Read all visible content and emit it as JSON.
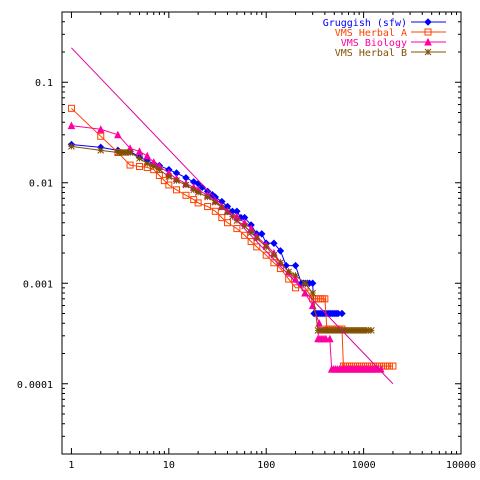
{
  "chart_data": {
    "type": "line",
    "title": "",
    "xlabel": "",
    "ylabel": "",
    "x_scale": "log",
    "y_scale": "log",
    "xlim": [
      0.8,
      10000
    ],
    "ylim": [
      2e-05,
      0.5
    ],
    "x_ticks": [
      {
        "value": 1,
        "label": "1"
      },
      {
        "value": 10,
        "label": "10"
      },
      {
        "value": 100,
        "label": "100"
      },
      {
        "value": 1000,
        "label": "1000"
      },
      {
        "value": 10000,
        "label": "10000"
      }
    ],
    "y_ticks": [
      {
        "value": 0.1,
        "label": "0.1"
      },
      {
        "value": 0.01,
        "label": "0.01"
      },
      {
        "value": 0.001,
        "label": "0.001"
      },
      {
        "value": 0.0001,
        "label": "0.0001"
      }
    ],
    "grid": false,
    "legend_position": "top-right",
    "series": [
      {
        "name": "Gruggish (sfw)",
        "color": "#0000ff",
        "marker": "diamond",
        "points": [
          [
            1,
            0.024
          ],
          [
            2,
            0.0225
          ],
          [
            3,
            0.021
          ],
          [
            4,
            0.0205
          ],
          [
            5,
            0.018
          ],
          [
            6,
            0.0165
          ],
          [
            7,
            0.0155
          ],
          [
            8,
            0.0148
          ],
          [
            10,
            0.0135
          ],
          [
            12,
            0.0125
          ],
          [
            15,
            0.0112
          ],
          [
            18,
            0.0102
          ],
          [
            20,
            0.0098
          ],
          [
            22,
            0.009
          ],
          [
            25,
            0.0082
          ],
          [
            28,
            0.0076
          ],
          [
            30,
            0.0072
          ],
          [
            35,
            0.0065
          ],
          [
            40,
            0.0058
          ],
          [
            45,
            0.0052
          ],
          [
            50,
            0.0052
          ],
          [
            55,
            0.0045
          ],
          [
            60,
            0.0045
          ],
          [
            70,
            0.0038
          ],
          [
            80,
            0.0031
          ],
          [
            90,
            0.0031
          ],
          [
            100,
            0.0025
          ],
          [
            120,
            0.0025
          ],
          [
            140,
            0.0021
          ],
          [
            160,
            0.0015
          ],
          [
            200,
            0.0015
          ],
          [
            230,
            0.001
          ],
          [
            300,
            0.001
          ],
          [
            310,
            0.0005
          ],
          [
            600,
            0.0005
          ]
        ]
      },
      {
        "name": "VMS Herbal A",
        "color": "#ff4000",
        "marker": "square",
        "points": [
          [
            1,
            0.055
          ],
          [
            2,
            0.029
          ],
          [
            3,
            0.02
          ],
          [
            4,
            0.015
          ],
          [
            5,
            0.0145
          ],
          [
            6,
            0.0142
          ],
          [
            7,
            0.0135
          ],
          [
            8,
            0.0118
          ],
          [
            9,
            0.0105
          ],
          [
            10,
            0.0095
          ],
          [
            12,
            0.0085
          ],
          [
            15,
            0.0075
          ],
          [
            18,
            0.0068
          ],
          [
            20,
            0.0063
          ],
          [
            25,
            0.0058
          ],
          [
            30,
            0.0052
          ],
          [
            35,
            0.0045
          ],
          [
            40,
            0.004
          ],
          [
            50,
            0.0035
          ],
          [
            60,
            0.003
          ],
          [
            70,
            0.0026
          ],
          [
            80,
            0.0023
          ],
          [
            100,
            0.0019
          ],
          [
            120,
            0.0016
          ],
          [
            140,
            0.0014
          ],
          [
            170,
            0.0011
          ],
          [
            200,
            0.0009
          ],
          [
            250,
            0.0009
          ],
          [
            300,
            0.0007
          ],
          [
            400,
            0.0007
          ],
          [
            420,
            0.00035
          ],
          [
            600,
            0.00035
          ],
          [
            620,
            0.00015
          ],
          [
            2000,
            0.00015
          ]
        ]
      },
      {
        "name": "VMS Biology",
        "color": "#ff00a0",
        "marker": "triangle",
        "points": [
          [
            1,
            0.037
          ],
          [
            2,
            0.034
          ],
          [
            3,
            0.03
          ],
          [
            4,
            0.022
          ],
          [
            5,
            0.0205
          ],
          [
            6,
            0.0185
          ],
          [
            7,
            0.016
          ],
          [
            8,
            0.0145
          ],
          [
            10,
            0.0125
          ],
          [
            12,
            0.011
          ],
          [
            15,
            0.0098
          ],
          [
            18,
            0.009
          ],
          [
            20,
            0.0085
          ],
          [
            25,
            0.0075
          ],
          [
            30,
            0.0066
          ],
          [
            35,
            0.0058
          ],
          [
            40,
            0.0052
          ],
          [
            50,
            0.0046
          ],
          [
            60,
            0.004
          ],
          [
            70,
            0.0035
          ],
          [
            80,
            0.0029
          ],
          [
            100,
            0.0024
          ],
          [
            120,
            0.002
          ],
          [
            140,
            0.0016
          ],
          [
            170,
            0.0013
          ],
          [
            200,
            0.0011
          ],
          [
            250,
            0.0008
          ],
          [
            300,
            0.0006
          ],
          [
            350,
            0.0004
          ],
          [
            340,
            0.00028
          ],
          [
            450,
            0.00028
          ],
          [
            470,
            0.00014
          ],
          [
            1500,
            0.00014
          ]
        ]
      },
      {
        "name": "VMS Herbal B",
        "color": "#805000",
        "marker": "star",
        "points": [
          [
            1,
            0.023
          ],
          [
            2,
            0.021
          ],
          [
            3,
            0.02
          ],
          [
            4,
            0.02
          ],
          [
            5,
            0.0175
          ],
          [
            6,
            0.0155
          ],
          [
            7,
            0.0145
          ],
          [
            8,
            0.0135
          ],
          [
            10,
            0.0115
          ],
          [
            12,
            0.0105
          ],
          [
            15,
            0.0095
          ],
          [
            18,
            0.0085
          ],
          [
            20,
            0.008
          ],
          [
            25,
            0.0072
          ],
          [
            30,
            0.0064
          ],
          [
            35,
            0.0057
          ],
          [
            40,
            0.0051
          ],
          [
            45,
            0.0046
          ],
          [
            50,
            0.0042
          ],
          [
            60,
            0.0037
          ],
          [
            70,
            0.0032
          ],
          [
            80,
            0.0028
          ],
          [
            100,
            0.0023
          ],
          [
            120,
            0.0019
          ],
          [
            140,
            0.0016
          ],
          [
            170,
            0.0013
          ],
          [
            200,
            0.0012
          ],
          [
            250,
            0.001
          ],
          [
            300,
            0.0008
          ],
          [
            340,
            0.00034
          ],
          [
            1200,
            0.00034
          ]
        ]
      },
      {
        "name": "",
        "color": "#e000a0",
        "marker": "none",
        "points": [
          [
            1,
            0.22
          ],
          [
            2000,
            0.0001
          ]
        ]
      }
    ]
  }
}
